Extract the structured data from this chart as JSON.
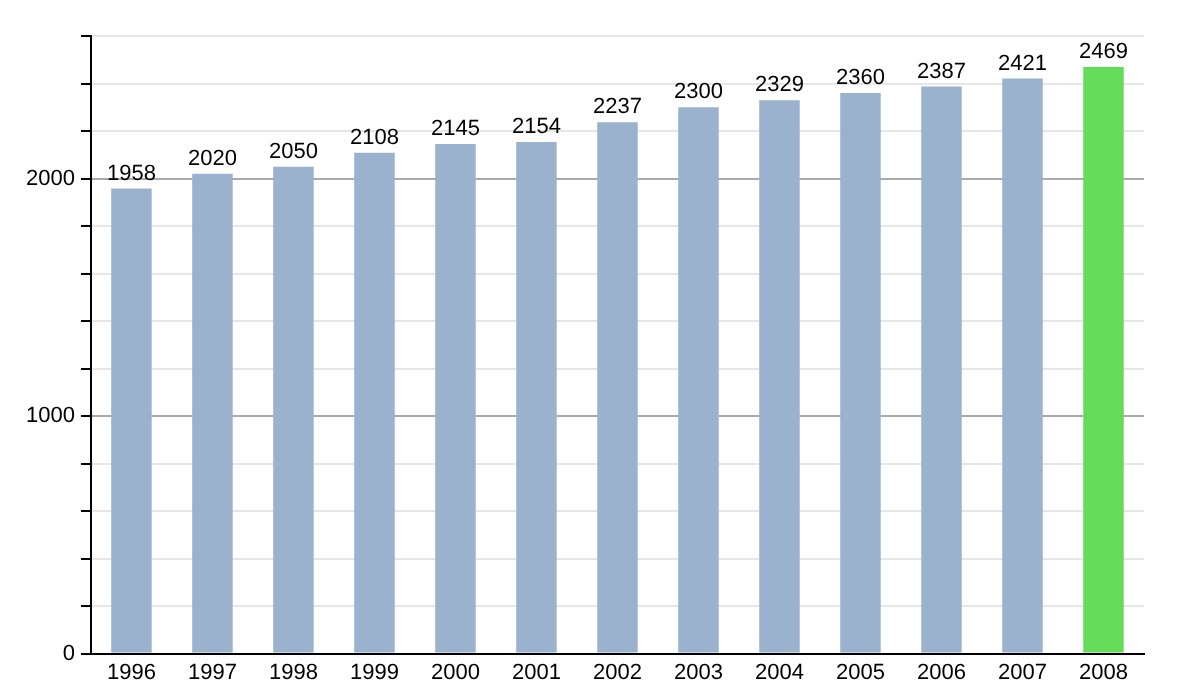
{
  "chart_data": {
    "type": "bar",
    "categories": [
      "1996",
      "1997",
      "1998",
      "1999",
      "2000",
      "2001",
      "2002",
      "2003",
      "2004",
      "2005",
      "2006",
      "2007",
      "2008"
    ],
    "values": [
      1958,
      2020,
      2050,
      2108,
      2145,
      2154,
      2237,
      2300,
      2329,
      2360,
      2387,
      2421,
      2469
    ],
    "colors": [
      "#9ab2cd",
      "#9ab2cd",
      "#9ab2cd",
      "#9ab2cd",
      "#9ab2cd",
      "#9ab2cd",
      "#9ab2cd",
      "#9ab2cd",
      "#9ab2cd",
      "#9ab2cd",
      "#9ab2cd",
      "#9ab2cd",
      "#66dd5a"
    ],
    "ylim": [
      0,
      2600
    ],
    "yticks": [
      0,
      {
        "value": 200,
        "label": null
      },
      {
        "value": 400,
        "label": null
      },
      {
        "value": 600,
        "label": null
      },
      {
        "value": 800,
        "label": null
      },
      1000,
      {
        "value": 1200,
        "label": null
      },
      {
        "value": 1400,
        "label": null
      },
      {
        "value": 1600,
        "label": null
      },
      {
        "value": 1800,
        "label": null
      },
      2000,
      {
        "value": 2200,
        "label": null
      },
      {
        "value": 2400,
        "label": null
      },
      {
        "value": 2600,
        "label": null
      }
    ],
    "grid": "y",
    "data_labels": true
  }
}
